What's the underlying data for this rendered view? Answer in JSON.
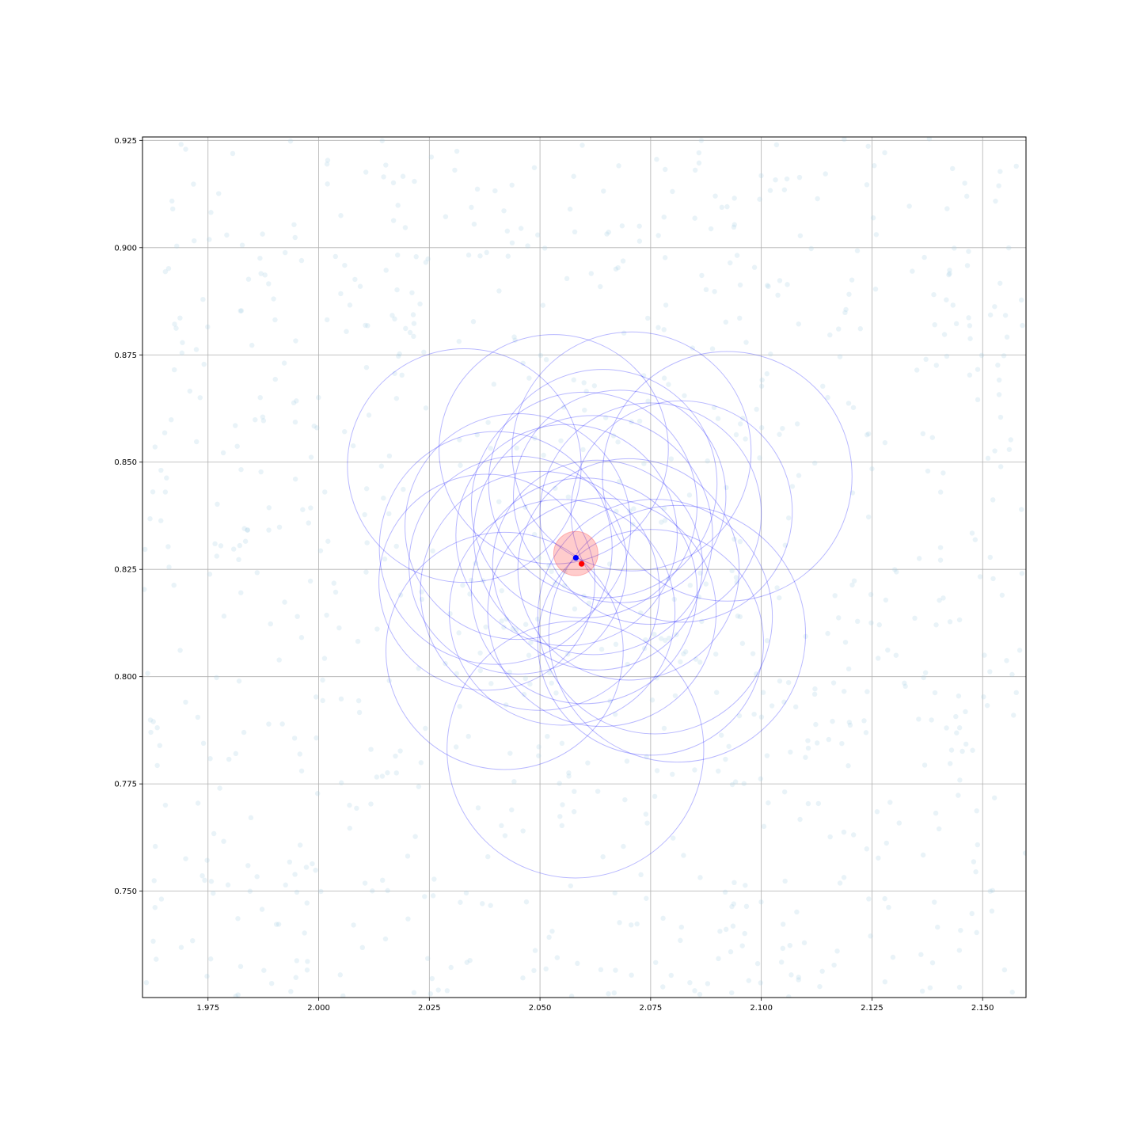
{
  "chart_data": {
    "type": "scatter",
    "title": "",
    "xlabel": "",
    "ylabel": "",
    "xlim": [
      1.9602,
      2.1598
    ],
    "ylim": [
      0.7252,
      0.9258
    ],
    "grid": true,
    "xticks": [
      1.975,
      2.0,
      2.025,
      2.05,
      2.075,
      2.1,
      2.125,
      2.15
    ],
    "xtick_labels": [
      "1.975",
      "2.000",
      "2.025",
      "2.050",
      "2.075",
      "2.100",
      "2.125",
      "2.150"
    ],
    "yticks": [
      0.75,
      0.775,
      0.8,
      0.825,
      0.85,
      0.875,
      0.9,
      0.925
    ],
    "ytick_labels": [
      "0.750",
      "0.775",
      "0.800",
      "0.825",
      "0.850",
      "0.875",
      "0.900",
      "0.925"
    ],
    "background_points": {
      "count": 900,
      "color": "#a6cee3",
      "opacity": 0.25,
      "distribution": "uniform random over the plotted region"
    },
    "circles": [
      {
        "x": 2.0329,
        "y": 0.8492,
        "r": 0.0264
      },
      {
        "x": 2.0531,
        "y": 0.853,
        "r": 0.0259
      },
      {
        "x": 2.0707,
        "y": 0.8525,
        "r": 0.027
      },
      {
        "x": 2.0923,
        "y": 0.8467,
        "r": 0.0282
      },
      {
        "x": 2.0642,
        "y": 0.845,
        "r": 0.0258
      },
      {
        "x": 2.06,
        "y": 0.84,
        "r": 0.0255
      },
      {
        "x": 2.062,
        "y": 0.833,
        "r": 0.027
      },
      {
        "x": 2.068,
        "y": 0.842,
        "r": 0.024
      },
      {
        "x": 2.075,
        "y": 0.838,
        "r": 0.025
      },
      {
        "x": 2.082,
        "y": 0.8385,
        "r": 0.025
      },
      {
        "x": 2.056,
        "y": 0.833,
        "r": 0.025
      },
      {
        "x": 2.04,
        "y": 0.83,
        "r": 0.0263
      },
      {
        "x": 2.045,
        "y": 0.826,
        "r": 0.0246
      },
      {
        "x": 2.05,
        "y": 0.82,
        "r": 0.027
      },
      {
        "x": 2.038,
        "y": 0.822,
        "r": 0.0244
      },
      {
        "x": 2.06,
        "y": 0.82,
        "r": 0.0255
      },
      {
        "x": 2.055,
        "y": 0.815,
        "r": 0.0255
      },
      {
        "x": 2.042,
        "y": 0.806,
        "r": 0.0268
      },
      {
        "x": 2.064,
        "y": 0.815,
        "r": 0.0258
      },
      {
        "x": 2.076,
        "y": 0.814,
        "r": 0.0265
      },
      {
        "x": 2.081,
        "y": 0.81,
        "r": 0.029
      },
      {
        "x": 2.075,
        "y": 0.808,
        "r": 0.0255
      },
      {
        "x": 2.063,
        "y": 0.826,
        "r": 0.0237
      },
      {
        "x": 2.058,
        "y": 0.783,
        "r": 0.029
      },
      {
        "x": 2.045,
        "y": 0.835,
        "r": 0.0255
      },
      {
        "x": 2.07,
        "y": 0.825,
        "r": 0.025
      }
    ],
    "circle_color": "#0000ff",
    "circle_opacity": 0.28,
    "highlight": {
      "x": 2.0581,
      "y": 0.8287,
      "r": 0.005,
      "color": "#ff0000",
      "opacity": 0.2
    },
    "points": [
      {
        "x": 2.0581,
        "y": 0.8277,
        "color": "#0000ff"
      },
      {
        "x": 2.0594,
        "y": 0.8263,
        "color": "#ff0000"
      }
    ]
  }
}
